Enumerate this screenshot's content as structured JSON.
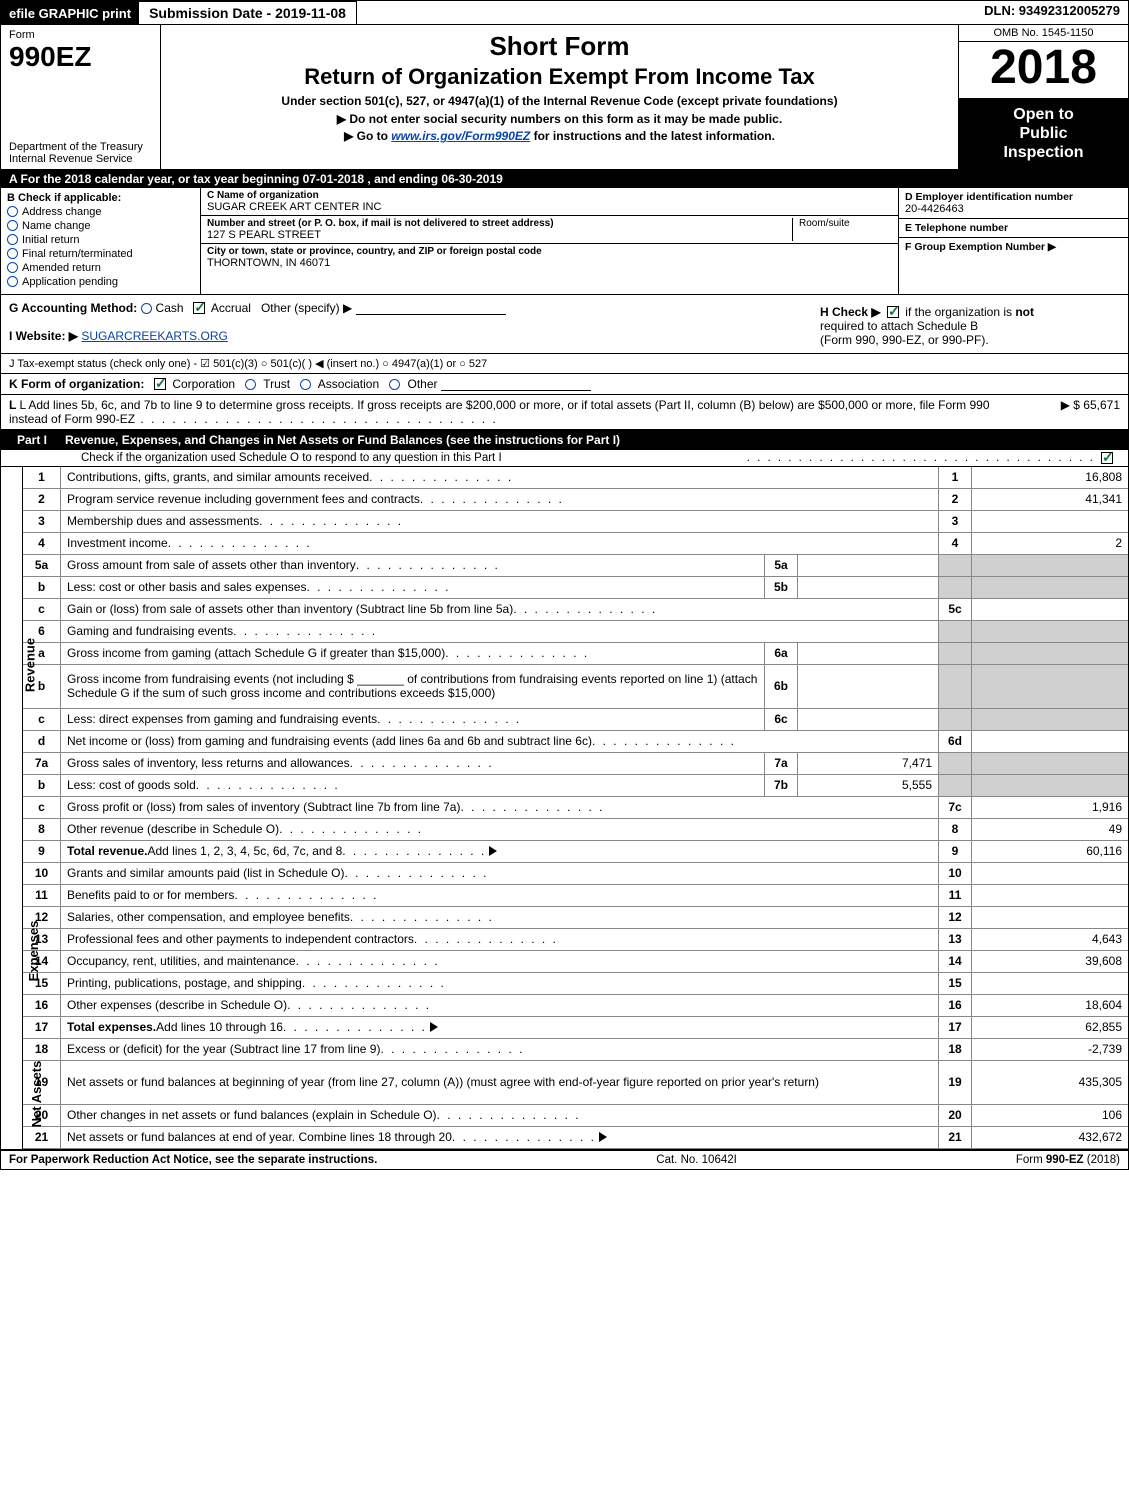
{
  "topbar": {
    "efile": "efile GRAPHIC print",
    "submission": "Submission Date - 2019-11-08",
    "dln": "DLN: 93492312005279"
  },
  "header": {
    "form_label": "Form",
    "form_number": "990EZ",
    "dept": "Department of the Treasury",
    "service": "Internal Revenue Service",
    "short_form": "Short Form",
    "return_title": "Return of Organization Exempt From Income Tax",
    "under_section": "Under section 501(c), 527, or 4947(a)(1) of the Internal Revenue Code (except private foundations)",
    "note1": "▶ Do not enter social security numbers on this form as it may be made public.",
    "note2_pre": "▶ Go to ",
    "note2_link": "www.irs.gov/Form990EZ",
    "note2_post": " for instructions and the latest information.",
    "omb": "OMB No. 1545-1150",
    "year": "2018",
    "open": "Open to",
    "public": "Public",
    "inspection": "Inspection"
  },
  "year_line": {
    "pre": "A   For the 2018 calendar year, or tax year beginning ",
    "begin": "07-01-2018",
    "mid": " , and ending ",
    "end": "06-30-2019"
  },
  "boxB": {
    "label": "B  Check if applicable:",
    "opts": [
      "Address change",
      "Name change",
      "Initial return",
      "Final return/terminated",
      "Amended return",
      "Application pending"
    ]
  },
  "boxC": {
    "name_label": "C Name of organization",
    "name": "SUGAR CREEK ART CENTER INC",
    "street_label": "Number and street (or P. O. box, if mail is not delivered to street address)",
    "street": "127 S PEARL STREET",
    "room_label": "Room/suite",
    "city_label": "City or town, state or province, country, and ZIP or foreign postal code",
    "city": "THORNTOWN, IN  46071"
  },
  "boxD": {
    "ein_label": "D Employer identification number",
    "ein": "20-4426463",
    "phone_label": "E Telephone number",
    "group_label": "F Group Exemption Number   ▶"
  },
  "rowG": {
    "label": "G Accounting Method:",
    "cash": "Cash",
    "accrual": "Accrual",
    "other": "Other (specify) ▶",
    "h_label": "H  Check ▶",
    "h_text1": "if the organization is ",
    "h_text_not": "not",
    "h_text2": "required to attach Schedule B",
    "h_text3": "(Form 990, 990-EZ, or 990-PF)."
  },
  "rowI": {
    "label": "I Website: ▶",
    "value": "SUGARCREEKARTS.ORG"
  },
  "rowJ": {
    "text": "J Tax-exempt status (check only one) -  ☑ 501(c)(3)  ○ 501(c)(  ) ◀ (insert no.)  ○ 4947(a)(1) or  ○ 527"
  },
  "rowK": {
    "label": "K Form of organization:",
    "corp": "Corporation",
    "trust": "Trust",
    "assoc": "Association",
    "other": "Other"
  },
  "rowL": {
    "text": "L Add lines 5b, 6c, and 7b to line 9 to determine gross receipts. If gross receipts are $200,000 or more, or if total assets (Part II, column (B) below) are $500,000 or more, file Form 990 instead of Form 990-EZ",
    "amount_label": "▶ $ 65,671"
  },
  "part1": {
    "label": "Part I",
    "title": "Revenue, Expenses, and Changes in Net Assets or Fund Balances (see the instructions for Part I)",
    "check_line": "Check if the organization used Schedule O to respond to any question in this Part I"
  },
  "side_labels": {
    "revenue": "Revenue",
    "expenses": "Expenses",
    "netassets": "Net Assets"
  },
  "revenue_lines": [
    {
      "ln": "1",
      "desc": "Contributions, gifts, grants, and similar amounts received",
      "rnum": "1",
      "rval": "16,808"
    },
    {
      "ln": "2",
      "desc": "Program service revenue including government fees and contracts",
      "rnum": "2",
      "rval": "41,341"
    },
    {
      "ln": "3",
      "desc": "Membership dues and assessments",
      "rnum": "3",
      "rval": ""
    },
    {
      "ln": "4",
      "desc": "Investment income",
      "rnum": "4",
      "rval": "2"
    },
    {
      "ln": "5a",
      "desc": "Gross amount from sale of assets other than inventory",
      "inum": "5a",
      "ival": "",
      "grey": true
    },
    {
      "ln": "b",
      "desc": "Less: cost or other basis and sales expenses",
      "inum": "5b",
      "ival": "",
      "grey": true
    },
    {
      "ln": "c",
      "desc": "Gain or (loss) from sale of assets other than inventory (Subtract line 5b from line 5a)",
      "rnum": "5c",
      "rval": ""
    },
    {
      "ln": "6",
      "desc": "Gaming and fundraising events",
      "grey_full": true
    },
    {
      "ln": "a",
      "desc": "Gross income from gaming (attach Schedule G if greater than $15,000)",
      "inum": "6a",
      "ival": "",
      "grey": true
    },
    {
      "ln": "b",
      "desc": "Gross income from fundraising events (not including $ _______ of contributions from fundraising events reported on line 1) (attach Schedule G if the sum of such gross income and contributions exceeds $15,000)",
      "inum": "6b",
      "ival": "",
      "grey": true,
      "tall": true
    },
    {
      "ln": "c",
      "desc": "Less: direct expenses from gaming and fundraising events",
      "inum": "6c",
      "ival": "",
      "grey": true
    },
    {
      "ln": "d",
      "desc": "Net income or (loss) from gaming and fundraising events (add lines 6a and 6b and subtract line 6c)",
      "rnum": "6d",
      "rval": ""
    },
    {
      "ln": "7a",
      "desc": "Gross sales of inventory, less returns and allowances",
      "inum": "7a",
      "ival": "7,471",
      "grey": true
    },
    {
      "ln": "b",
      "desc": "Less: cost of goods sold",
      "inum": "7b",
      "ival": "5,555",
      "grey": true
    },
    {
      "ln": "c",
      "desc": "Gross profit or (loss) from sales of inventory (Subtract line 7b from line 7a)",
      "rnum": "7c",
      "rval": "1,916"
    },
    {
      "ln": "8",
      "desc": "Other revenue (describe in Schedule O)",
      "rnum": "8",
      "rval": "49"
    },
    {
      "ln": "9",
      "desc": "Total revenue. Add lines 1, 2, 3, 4, 5c, 6d, 7c, and 8",
      "rnum": "9",
      "rval": "60,116",
      "bold": true,
      "arrow": true
    }
  ],
  "expense_lines": [
    {
      "ln": "10",
      "desc": "Grants and similar amounts paid (list in Schedule O)",
      "rnum": "10",
      "rval": ""
    },
    {
      "ln": "11",
      "desc": "Benefits paid to or for members",
      "rnum": "11",
      "rval": ""
    },
    {
      "ln": "12",
      "desc": "Salaries, other compensation, and employee benefits",
      "rnum": "12",
      "rval": ""
    },
    {
      "ln": "13",
      "desc": "Professional fees and other payments to independent contractors",
      "rnum": "13",
      "rval": "4,643"
    },
    {
      "ln": "14",
      "desc": "Occupancy, rent, utilities, and maintenance",
      "rnum": "14",
      "rval": "39,608"
    },
    {
      "ln": "15",
      "desc": "Printing, publications, postage, and shipping",
      "rnum": "15",
      "rval": ""
    },
    {
      "ln": "16",
      "desc": "Other expenses (describe in Schedule O)",
      "rnum": "16",
      "rval": "18,604"
    },
    {
      "ln": "17",
      "desc": "Total expenses. Add lines 10 through 16",
      "rnum": "17",
      "rval": "62,855",
      "bold": true,
      "arrow": true
    }
  ],
  "netasset_lines": [
    {
      "ln": "18",
      "desc": "Excess or (deficit) for the year (Subtract line 17 from line 9)",
      "rnum": "18",
      "rval": "-2,739"
    },
    {
      "ln": "19",
      "desc": "Net assets or fund balances at beginning of year (from line 27, column (A)) (must agree with end-of-year figure reported on prior year's return)",
      "rnum": "19",
      "rval": "435,305",
      "tall": true
    },
    {
      "ln": "20",
      "desc": "Other changes in net assets or fund balances (explain in Schedule O)",
      "rnum": "20",
      "rval": "106"
    },
    {
      "ln": "21",
      "desc": "Net assets or fund balances at end of year. Combine lines 18 through 20",
      "rnum": "21",
      "rval": "432,672",
      "arrow": true
    }
  ],
  "footer": {
    "left": "For Paperwork Reduction Act Notice, see the separate instructions.",
    "center": "Cat. No. 10642I",
    "right": "Form 990-EZ (2018)"
  }
}
